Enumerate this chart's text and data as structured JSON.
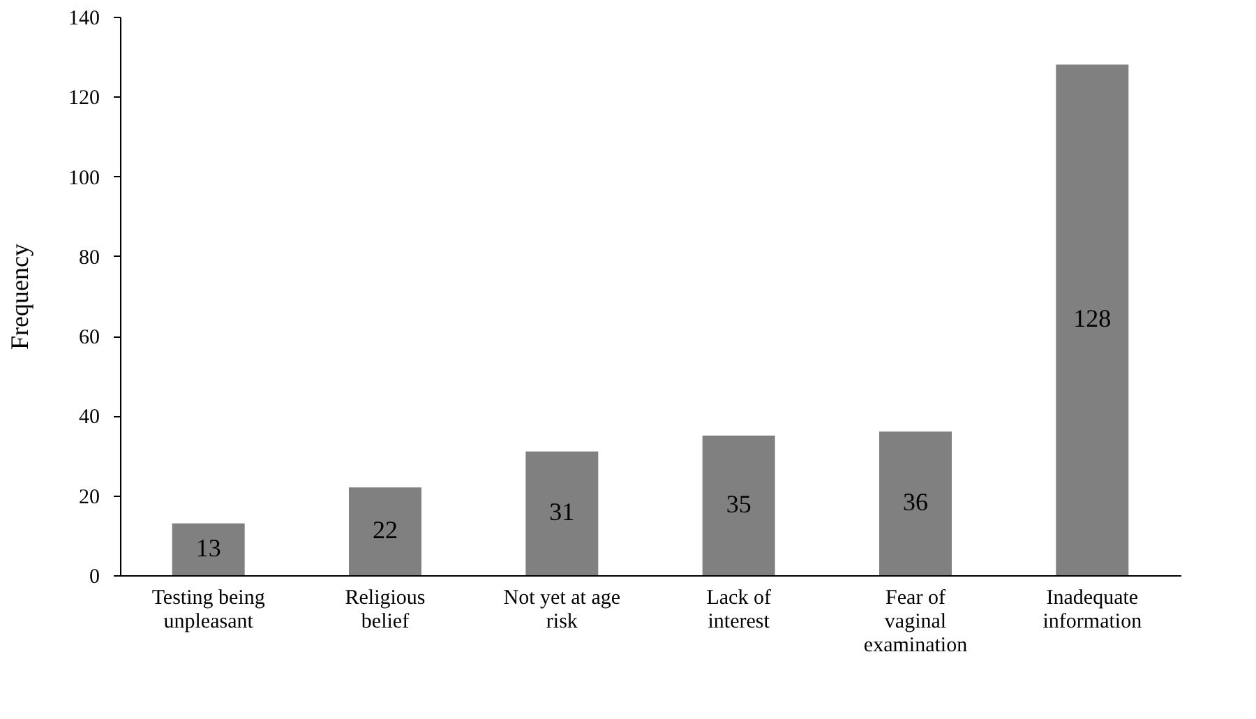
{
  "chart_data": {
    "type": "bar",
    "ylabel": "Frequency",
    "categories": [
      "Testing being unpleasant",
      "Religious belief",
      "Not yet at age risk",
      "Lack of interest",
      "Fear of vaginal examination",
      "Inadequate information"
    ],
    "values": [
      13,
      22,
      31,
      35,
      36,
      128
    ],
    "color": "#808080",
    "data_labels": true,
    "ylim": [
      0,
      140
    ],
    "yticks": [
      0,
      20,
      40,
      60,
      80,
      100,
      120,
      140
    ],
    "grid": false
  }
}
